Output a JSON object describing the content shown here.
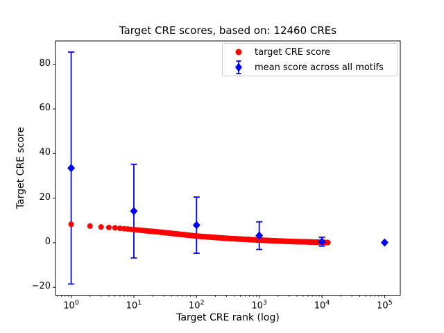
{
  "chart_data": {
    "type": "scatter",
    "title": "Target CRE scores, based on: 12460 CREs",
    "xlabel": "Target CRE rank (log)",
    "ylabel": "Target CRE score",
    "x_scale": "log",
    "xlim_log10": [
      -0.25,
      5.25
    ],
    "ylim": [
      -23.5,
      90.5
    ],
    "x_tick_exponents": [
      0,
      1,
      2,
      3,
      4,
      5
    ],
    "y_ticks": [
      -20,
      0,
      20,
      40,
      60,
      80
    ],
    "n_cres": 12460,
    "grid": false,
    "series": [
      {
        "name": "target CRE score",
        "kind": "scatter-curve",
        "color": "#ff0000",
        "marker": "circle",
        "marker_radius_px": 4,
        "rank_range": [
          1,
          12460
        ],
        "curve_points": [
          {
            "rank": 1,
            "score": 8.3
          },
          {
            "rank": 2,
            "score": 7.5
          },
          {
            "rank": 3,
            "score": 7.1
          },
          {
            "rank": 5,
            "score": 6.7
          },
          {
            "rank": 10,
            "score": 5.9
          },
          {
            "rank": 30,
            "score": 4.6
          },
          {
            "rank": 100,
            "score": 3.0
          },
          {
            "rank": 300,
            "score": 2.0
          },
          {
            "rank": 1000,
            "score": 1.2
          },
          {
            "rank": 3000,
            "score": 0.6
          },
          {
            "rank": 10000,
            "score": 0.2
          },
          {
            "rank": 12460,
            "score": 0.1
          }
        ]
      },
      {
        "name": "mean score across all motifs",
        "kind": "errorbar",
        "color": "#0000ff",
        "marker": "diamond",
        "x": [
          1,
          10,
          100,
          1000,
          10000,
          100000
        ],
        "y": [
          33.5,
          14.2,
          7.9,
          3.2,
          0.5,
          0.1
        ],
        "yerr": [
          52,
          21,
          12.6,
          6.2,
          2.0,
          0
        ]
      }
    ],
    "legend": {
      "position": "upper right",
      "entries": [
        {
          "label": "target CRE score",
          "marker": "circle",
          "color": "#ff0000"
        },
        {
          "label": "mean score across all motifs",
          "marker": "diamond-errorbar",
          "color": "#0000ff"
        }
      ]
    },
    "colors": {
      "red_series": "#ff0000",
      "blue_series": "#0000ff",
      "axis": "#000000",
      "background": "#ffffff",
      "legend_border": "#cccccc"
    }
  }
}
